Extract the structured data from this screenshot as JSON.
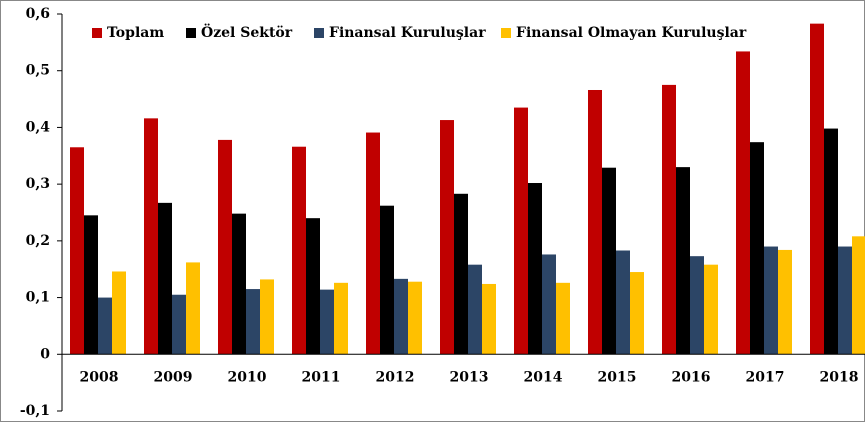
{
  "chart_data": {
    "type": "bar",
    "categories": [
      "2008",
      "2009",
      "2010",
      "2011",
      "2012",
      "2013",
      "2014",
      "2015",
      "2016",
      "2017",
      "2018"
    ],
    "series": [
      {
        "name": "Toplam",
        "color": "#c00000",
        "values": [
          0.365,
          0.416,
          0.378,
          0.366,
          0.391,
          0.413,
          0.435,
          0.466,
          0.475,
          0.534,
          0.583
        ]
      },
      {
        "name": "Özel Sektör",
        "color": "#000000",
        "values": [
          0.245,
          0.267,
          0.248,
          0.24,
          0.262,
          0.283,
          0.302,
          0.329,
          0.33,
          0.374,
          0.398
        ]
      },
      {
        "name": "Finansal Kuruluşlar",
        "color": "#2c4566",
        "values": [
          0.1,
          0.105,
          0.115,
          0.114,
          0.133,
          0.158,
          0.176,
          0.183,
          0.173,
          0.19,
          0.19
        ]
      },
      {
        "name": "Finansal Olmayan Kuruluşlar",
        "color": "#ffc000",
        "values": [
          0.146,
          0.162,
          0.132,
          0.126,
          0.128,
          0.124,
          0.126,
          0.145,
          0.158,
          0.184,
          0.208
        ]
      }
    ],
    "ylim": [
      -0.1,
      0.6
    ],
    "yticks": [
      {
        "value": -0.1,
        "label": "-0,1"
      },
      0,
      {
        "value": 0.1,
        "label": "0,1"
      },
      {
        "value": 0.2,
        "label": "0,2"
      },
      {
        "value": 0.3,
        "label": "0,3"
      },
      {
        "value": 0.4,
        "label": "0,4"
      },
      {
        "value": 0.5,
        "label": "0,5"
      },
      {
        "value": 0.6,
        "label": "0,6"
      }
    ],
    "grid": false,
    "legend": "top"
  }
}
